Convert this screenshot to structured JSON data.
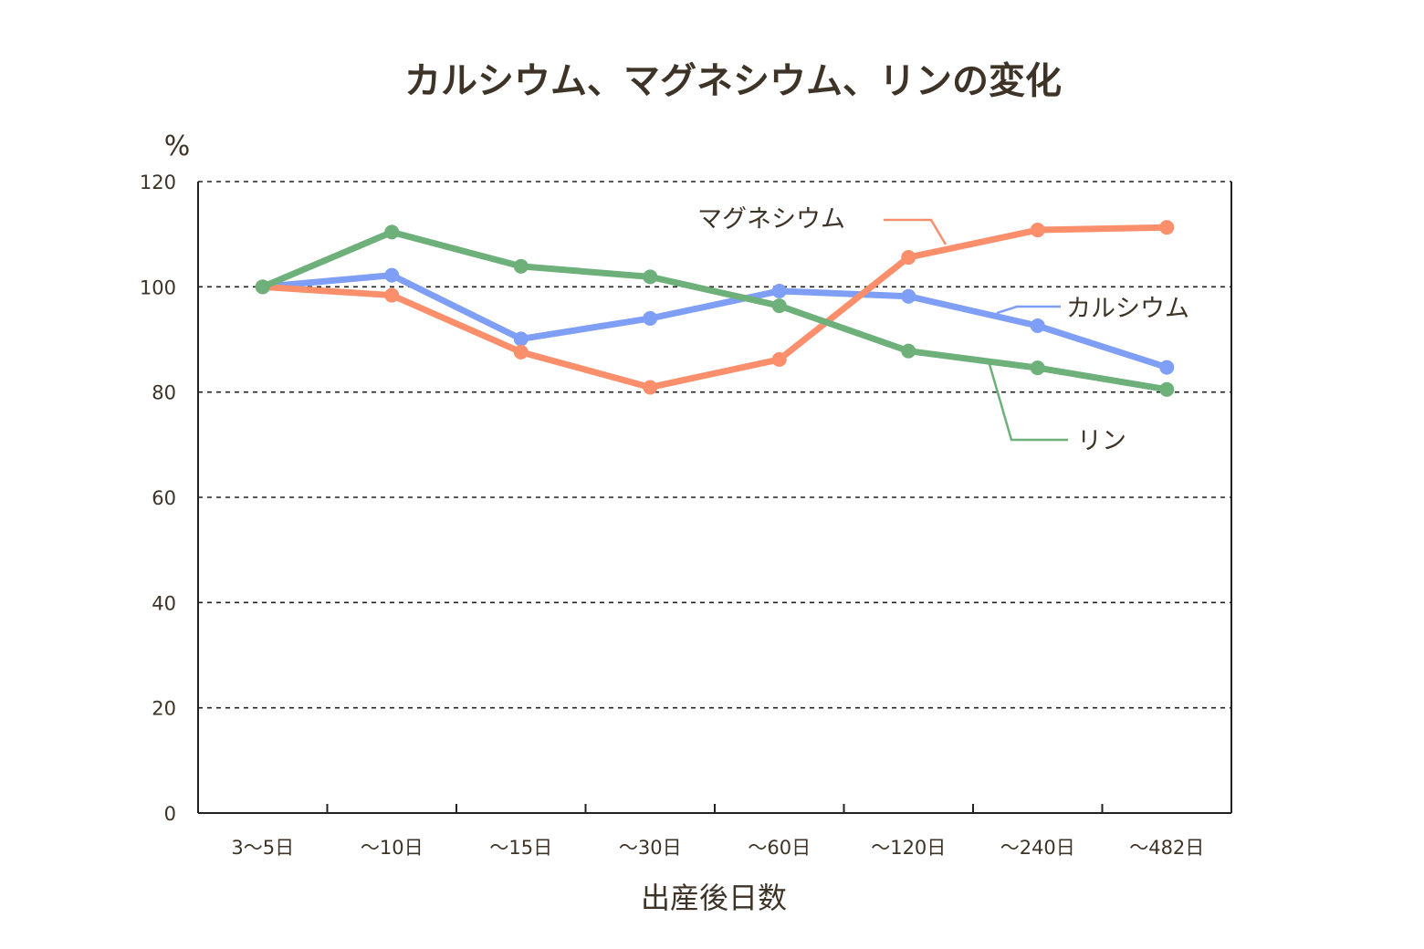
{
  "chart_data": {
    "type": "line",
    "title": "カルシウム、マグネシウム、リンの変化",
    "ylabel": "%",
    "xlabel": "出産後日数",
    "ylim": [
      0,
      120
    ],
    "yticks": [
      0,
      20,
      40,
      60,
      80,
      100,
      120
    ],
    "grid": true,
    "categories": [
      "3〜5日",
      "〜10日",
      "〜15日",
      "〜30日",
      "〜60日",
      "〜120日",
      "〜240日",
      "〜482日"
    ],
    "series": [
      {
        "name": "カルシウム",
        "color": "#7f9ef5",
        "values": [
          100,
          102.2,
          90.1,
          94,
          99.2,
          98.2,
          92.6,
          84.7
        ]
      },
      {
        "name": "マグネシウム",
        "color": "#fb8f6c",
        "values": [
          100,
          98.4,
          87.6,
          80.9,
          86.2,
          105.6,
          110.8,
          111.3
        ]
      },
      {
        "name": "リン",
        "color": "#6db07a",
        "values": [
          100,
          110.4,
          103.9,
          101.9,
          96.4,
          87.8,
          84.6,
          80.5
        ]
      }
    ]
  }
}
